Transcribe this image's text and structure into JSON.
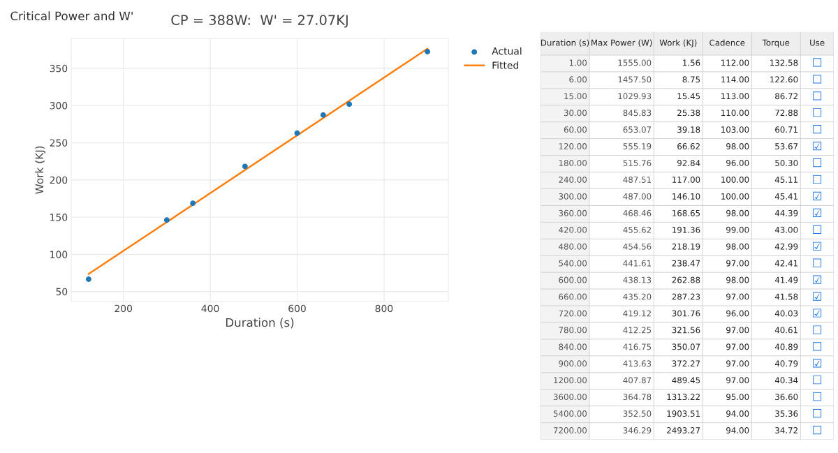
{
  "chart_data": [
    {
      "type": "scatter",
      "title": "CP = 388W:  W' = 27.07KJ",
      "xlabel": "Duration (s)",
      "ylabel": "Work (KJ)",
      "annotations": [
        "Critical Power and W'"
      ],
      "series": [
        {
          "name": "Actual",
          "type": "scatter",
          "color": "#1f77b4",
          "marker": "circle",
          "x": [
            120,
            300,
            360,
            480,
            600,
            660,
            720,
            900
          ],
          "values": [
            66.62,
            146.1,
            168.65,
            218.19,
            262.88,
            287.23,
            301.76,
            372.27
          ]
        },
        {
          "name": "Fitted",
          "type": "line",
          "color": "#ff7f0e",
          "marker": "none",
          "line_style": "solid",
          "x": [
            120,
            900
          ],
          "values": [
            73.6,
            376.3
          ]
        }
      ],
      "xlim": [
        80,
        948
      ],
      "ylim": [
        37,
        390
      ],
      "xticks": [
        200,
        400,
        600,
        800
      ],
      "yticks": [
        50,
        100,
        150,
        200,
        250,
        300,
        350
      ],
      "grid": true,
      "legend": "top right"
    },
    {
      "type": "other",
      "annotations": [
        "Duration (s)",
        "Max Power (W)",
        "Work (KJ)",
        "Cadence",
        "Torque",
        "Use",
        "1.00",
        "1555.00",
        "1.56",
        "112.00",
        "132.58",
        "☐",
        "6.00",
        "1457.50",
        "8.75",
        "114.00",
        "122.60",
        "☐",
        "15.00",
        "1029.93",
        "15.45",
        "113.00",
        "86.72",
        "☐",
        "30.00",
        "845.83",
        "25.38",
        "110.00",
        "72.88",
        "☐",
        "60.00",
        "653.07",
        "39.18",
        "103.00",
        "60.71",
        "☐",
        "120.00",
        "555.19",
        "66.62",
        "98.00",
        "53.67",
        "☑",
        "180.00",
        "515.76",
        "92.84",
        "96.00",
        "50.30",
        "☐",
        "240.00",
        "487.51",
        "117.00",
        "100.00",
        "45.11",
        "☐",
        "300.00",
        "487.00",
        "146.10",
        "100.00",
        "45.41",
        "☑",
        "360.00",
        "468.46",
        "168.65",
        "98.00",
        "44.39",
        "☑",
        "420.00",
        "455.62",
        "191.36",
        "99.00",
        "43.00",
        "☐",
        "480.00",
        "454.56",
        "218.19",
        "98.00",
        "42.99",
        "☑",
        "540.00",
        "441.61",
        "238.47",
        "97.00",
        "42.41",
        "☐",
        "600.00",
        "438.13",
        "262.88",
        "98.00",
        "41.49",
        "☑",
        "660.00",
        "435.20",
        "287.23",
        "97.00",
        "41.58",
        "☑",
        "720.00",
        "419.12",
        "301.76",
        "96.00",
        "40.03",
        "☑",
        "780.00",
        "412.25",
        "321.56",
        "97.00",
        "40.61",
        "☐",
        "840.00",
        "416.75",
        "350.07",
        "97.00",
        "40.89",
        "☐",
        "900.00",
        "413.63",
        "372.27",
        "97.00",
        "40.79",
        "☑",
        "1200.00",
        "407.87",
        "489.45",
        "97.00",
        "40.34",
        "☐",
        "3600.00",
        "364.78",
        "1313.22",
        "95.00",
        "36.60",
        "☐",
        "5400.00",
        "352.50",
        "1903.51",
        "94.00",
        "35.36",
        "☐",
        "7200.00",
        "346.29",
        "2493.27",
        "94.00",
        "34.72",
        "☐"
      ]
    }
  ]
}
